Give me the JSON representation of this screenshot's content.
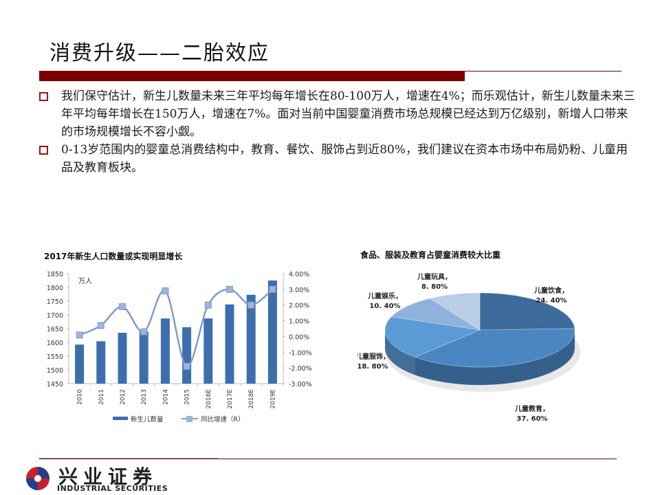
{
  "slide": {
    "title": "消费升级——二胎效应",
    "colors": {
      "accent_red": "#7a0000",
      "bullet_red": "#a01010",
      "bar_blue": "#3d6fad",
      "line_blue": "#7f9cc8"
    }
  },
  "bullets": [
    {
      "text": "我们保守估计，新生儿数量未来三年平均每年增长在80-100万人，增速在4%；而乐观估计，新生儿数量未来三年平均每年增长在150万人，增速在7%。面对当前中国婴童消费市场总规模已经达到万亿级别，新增人口带来的市场规模增长不容小觑。"
    },
    {
      "text": "0-13岁范围内的婴童总消费结构中，教育、餐饮、服饰占到近80%，我们建议在资本市场中布局奶粉、儿童用品及教育板块。"
    }
  ],
  "footer": {
    "logo_cn": "兴业证券",
    "logo_en": "INDUSTRIAL SECURITIES"
  },
  "chart_data": [
    {
      "type": "bar",
      "title": "2017年新生人口数量或实现明显增长",
      "unit_label": "万人",
      "categories": [
        "2010",
        "2011",
        "2012",
        "2013",
        "2014",
        "2015",
        "2016E",
        "2017E",
        "2018E",
        "2019E"
      ],
      "series": [
        {
          "name": "新生儿数量",
          "type": "bar",
          "axis": "left",
          "values": [
            1592,
            1604,
            1635,
            1640,
            1687,
            1655,
            1687,
            1738,
            1773,
            1825
          ]
        },
        {
          "name": "同比增速（R）",
          "type": "line",
          "axis": "right",
          "values": [
            0.09,
            0.7,
            1.9,
            0.3,
            2.9,
            -1.9,
            2.0,
            3.0,
            2.0,
            3.0
          ]
        }
      ],
      "ylim": [
        1450,
        1850
      ],
      "yticks": [
        "1850",
        "1800",
        "1750",
        "1700",
        "1650",
        "1600",
        "1550",
        "1500",
        "1450"
      ],
      "y2lim": [
        -3,
        4
      ],
      "y2ticks": [
        "4.00%",
        "3.00%",
        "2.00%",
        "1.00%",
        "0.00%",
        "-1.00%",
        "-2.00%",
        "-3.00%"
      ],
      "legend": [
        "新生儿数量",
        "同比增速（R）"
      ],
      "legend_position": "bottom",
      "grid": false
    },
    {
      "type": "pie",
      "title": "食品、服装及教育占婴童消费较大比重",
      "categories": [
        "儿童饮食",
        "儿童教育",
        "儿童服饰",
        "儿童娱乐",
        "儿童玩具"
      ],
      "values": [
        24.4,
        37.6,
        18.8,
        10.4,
        8.8
      ],
      "labels": [
        "儿童饮食，24. 40%",
        "儿童教育，37. 60%",
        "儿童服饰，18. 80%",
        "儿童娱乐，10. 40%",
        "儿童玩具，8. 80%"
      ],
      "label_lines": [
        [
          "儿童饮食，",
          "24. 40%"
        ],
        [
          "儿童教育，",
          "37. 60%"
        ],
        [
          "儿童服饰，",
          "18. 80%"
        ],
        [
          "儿童娱乐，",
          "10. 40%"
        ],
        [
          "儿童玩具，",
          "8. 80%"
        ]
      ],
      "colors": [
        "#3c6b9c",
        "#4a86c2",
        "#5c9ad6",
        "#8fb2dc",
        "#b9cde6"
      ],
      "style": "3d"
    }
  ]
}
